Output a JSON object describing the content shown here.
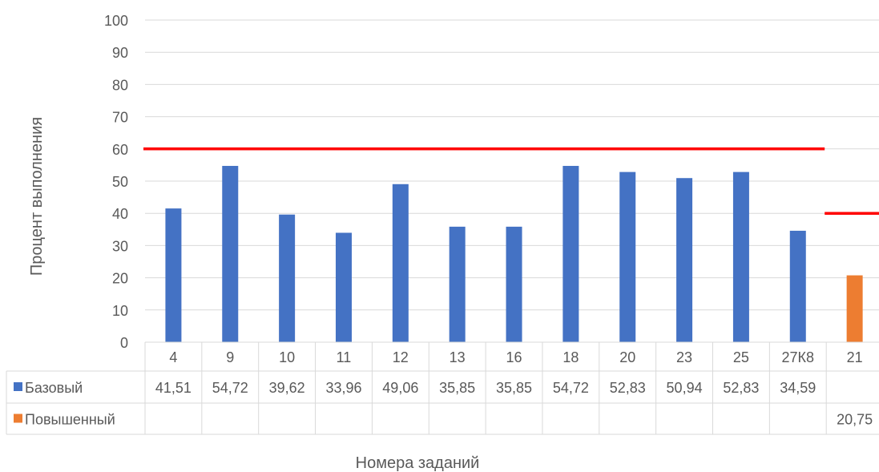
{
  "chart_data": {
    "type": "bar",
    "title": "",
    "xlabel": "Номера заданий",
    "ylabel": "Процент выполнения",
    "ylim": [
      0,
      100
    ],
    "y_ticks": [
      0,
      10,
      20,
      30,
      40,
      50,
      60,
      70,
      80,
      90,
      100
    ],
    "grid": true,
    "categories": [
      "4",
      "9",
      "10",
      "11",
      "12",
      "13",
      "16",
      "18",
      "20",
      "23",
      "25",
      "27К8",
      "21"
    ],
    "series": [
      {
        "name": "Базовый",
        "color": "#4472C4",
        "values": [
          41.51,
          54.72,
          39.62,
          33.96,
          49.06,
          35.85,
          35.85,
          54.72,
          52.83,
          50.94,
          52.83,
          34.59,
          null
        ],
        "labels": [
          "41,51",
          "54,72",
          "39,62",
          "33,96",
          "49,06",
          "35,85",
          "35,85",
          "54,72",
          "52,83",
          "50,94",
          "52,83",
          "34,59",
          ""
        ]
      },
      {
        "name": "Повышенный",
        "color": "#ED7D31",
        "values": [
          null,
          null,
          null,
          null,
          null,
          null,
          null,
          null,
          null,
          null,
          null,
          null,
          20.75
        ],
        "labels": [
          "",
          "",
          "",
          "",
          "",
          "",
          "",
          "",
          "",
          "",
          "",
          "",
          "20,75"
        ]
      }
    ],
    "reference_lines": [
      {
        "value": 60,
        "from": "4",
        "to": "27К8",
        "color": "#FF0000"
      },
      {
        "value": 40,
        "from": "21",
        "to": "21",
        "color": "#FF0000"
      }
    ],
    "legend": "data-table"
  }
}
